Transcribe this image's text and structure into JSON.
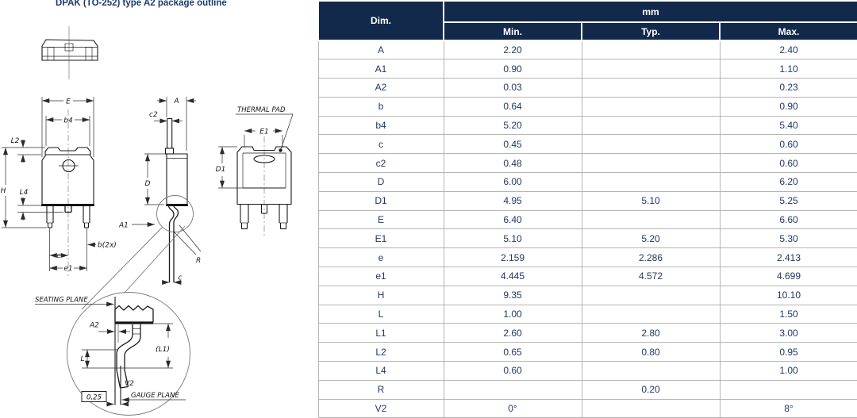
{
  "title": "DPAK (TO-252) type A2 package outline",
  "drawing": {
    "labels": {
      "E": "E",
      "b4": "b4",
      "L2": "L2",
      "H": "H",
      "L4": "L4",
      "b2x": "b(2x)",
      "e": "e",
      "e1": "e1",
      "A": "A",
      "c2": "c2",
      "D": "D",
      "A1": "A1",
      "R": "R",
      "c": "c",
      "thermal_pad": "THERMAL PAD",
      "E1": "E1",
      "D1": "D1",
      "seating_plane": "SEATING PLANE",
      "A2": "A2",
      "L1": "(L1)",
      "L": "L",
      "V2": "V2",
      "gauge_plane": "GAUGE PLANE",
      "tolerance": "0,25"
    }
  },
  "table": {
    "header": {
      "dim": "Dim.",
      "unit": "mm",
      "min": "Min.",
      "typ": "Typ.",
      "max": "Max."
    },
    "rows": [
      {
        "dim": "A",
        "min": "2.20",
        "typ": "",
        "max": "2.40"
      },
      {
        "dim": "A1",
        "min": "0.90",
        "typ": "",
        "max": "1.10"
      },
      {
        "dim": "A2",
        "min": "0.03",
        "typ": "",
        "max": "0.23"
      },
      {
        "dim": "b",
        "min": "0.64",
        "typ": "",
        "max": "0.90"
      },
      {
        "dim": "b4",
        "min": "5.20",
        "typ": "",
        "max": "5.40"
      },
      {
        "dim": "c",
        "min": "0.45",
        "typ": "",
        "max": "0.60"
      },
      {
        "dim": "c2",
        "min": "0.48",
        "typ": "",
        "max": "0.60"
      },
      {
        "dim": "D",
        "min": "6.00",
        "typ": "",
        "max": "6.20"
      },
      {
        "dim": "D1",
        "min": "4.95",
        "typ": "5.10",
        "max": "5.25"
      },
      {
        "dim": "E",
        "min": "6.40",
        "typ": "",
        "max": "6.60"
      },
      {
        "dim": "E1",
        "min": "5.10",
        "typ": "5.20",
        "max": "5.30"
      },
      {
        "dim": "e",
        "min": "2.159",
        "typ": "2.286",
        "max": "2.413"
      },
      {
        "dim": "e1",
        "min": "4.445",
        "typ": "4.572",
        "max": "4.699"
      },
      {
        "dim": "H",
        "min": "9.35",
        "typ": "",
        "max": "10.10"
      },
      {
        "dim": "L",
        "min": "1.00",
        "typ": "",
        "max": "1.50"
      },
      {
        "dim": "L1",
        "min": "2.60",
        "typ": "2.80",
        "max": "3.00"
      },
      {
        "dim": "L2",
        "min": "0.65",
        "typ": "0.80",
        "max": "0.95"
      },
      {
        "dim": "L4",
        "min": "0.60",
        "typ": "",
        "max": "1.00"
      },
      {
        "dim": "R",
        "min": "",
        "typ": "0.20",
        "max": ""
      },
      {
        "dim": "V2",
        "min": "0°",
        "typ": "",
        "max": "8°"
      }
    ]
  },
  "colors": {
    "header_bg": "#12294B",
    "table_text": "#1F3864",
    "title_text": "#1E3A6B",
    "grid_border": "#B5B5B5",
    "drawing_line": "#1A1A1A"
  }
}
